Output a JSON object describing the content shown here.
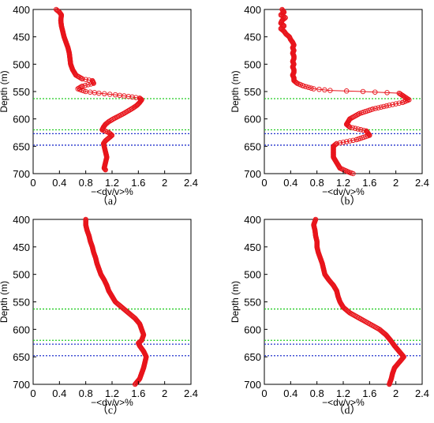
{
  "figure": {
    "panel_labels": [
      "（a）",
      "（b）",
      "（c）",
      "（d）"
    ]
  },
  "style": {
    "marker_color": "#e8141b",
    "green_line_color": "#22cc22",
    "blue_line_color": "#2233cc"
  },
  "chart_data": [
    {
      "type": "scatter",
      "panel": "（a）",
      "xlabel": "−<dv/v>%",
      "ylabel": "Depth (m)",
      "xlim": [
        0,
        2.4
      ],
      "ylim": [
        400,
        700
      ],
      "y_inverted": true,
      "xticks": [
        "0",
        "0.4",
        "0.8",
        "1.2",
        "1.6",
        "2",
        "2.4"
      ],
      "yticks": [
        "400",
        "450",
        "500",
        "550",
        "600",
        "650",
        "700"
      ],
      "hlines": [
        {
          "depth": 563,
          "color": "green"
        },
        {
          "depth": 620,
          "color": "green"
        },
        {
          "depth": 627,
          "color": "blue"
        },
        {
          "depth": 648,
          "color": "blue"
        }
      ],
      "curve": [
        [
          0.35,
          400
        ],
        [
          0.4,
          405
        ],
        [
          0.43,
          410
        ],
        [
          0.42,
          420
        ],
        [
          0.43,
          430
        ],
        [
          0.45,
          440
        ],
        [
          0.47,
          450
        ],
        [
          0.5,
          460
        ],
        [
          0.53,
          470
        ],
        [
          0.55,
          480
        ],
        [
          0.56,
          490
        ],
        [
          0.57,
          500
        ],
        [
          0.6,
          510
        ],
        [
          0.65,
          520
        ],
        [
          0.75,
          527
        ],
        [
          0.9,
          530
        ],
        [
          0.92,
          535
        ],
        [
          0.75,
          540
        ],
        [
          0.68,
          545
        ],
        [
          0.8,
          550
        ],
        [
          1.0,
          553
        ],
        [
          1.25,
          556
        ],
        [
          1.45,
          559
        ],
        [
          1.62,
          562
        ],
        [
          1.65,
          565
        ],
        [
          1.62,
          570
        ],
        [
          1.58,
          575
        ],
        [
          1.52,
          580
        ],
        [
          1.45,
          585
        ],
        [
          1.38,
          590
        ],
        [
          1.3,
          595
        ],
        [
          1.22,
          600
        ],
        [
          1.15,
          605
        ],
        [
          1.1,
          610
        ],
        [
          1.07,
          615
        ],
        [
          1.05,
          620
        ],
        [
          1.15,
          625
        ],
        [
          1.2,
          630
        ],
        [
          1.15,
          635
        ],
        [
          1.1,
          640
        ],
        [
          1.07,
          645
        ],
        [
          1.08,
          650
        ],
        [
          1.1,
          660
        ],
        [
          1.12,
          670
        ],
        [
          1.1,
          680
        ],
        [
          1.08,
          690
        ],
        [
          1.1,
          693
        ]
      ]
    },
    {
      "type": "scatter",
      "panel": "（b）",
      "xlabel": "−<dv/v>%",
      "ylabel": "Depth (m)",
      "xlim": [
        0,
        2.4
      ],
      "ylim": [
        400,
        700
      ],
      "y_inverted": true,
      "xticks": [
        "0",
        "0.4",
        "0.8",
        "1.2",
        "1.6",
        "2",
        "2.4"
      ],
      "yticks": [
        "400",
        "450",
        "500",
        "550",
        "600",
        "650",
        "700"
      ],
      "hlines": [
        {
          "depth": 563,
          "color": "green"
        },
        {
          "depth": 620,
          "color": "green"
        },
        {
          "depth": 627,
          "color": "blue"
        },
        {
          "depth": 648,
          "color": "blue"
        }
      ],
      "curve": [
        [
          0.27,
          400
        ],
        [
          0.3,
          405
        ],
        [
          0.25,
          410
        ],
        [
          0.32,
          415
        ],
        [
          0.27,
          420
        ],
        [
          0.25,
          425
        ],
        [
          0.3,
          430
        ],
        [
          0.25,
          435
        ],
        [
          0.3,
          440
        ],
        [
          0.33,
          445
        ],
        [
          0.38,
          450
        ],
        [
          0.4,
          455
        ],
        [
          0.43,
          460
        ],
        [
          0.45,
          465
        ],
        [
          0.43,
          470
        ],
        [
          0.45,
          475
        ],
        [
          0.43,
          480
        ],
        [
          0.45,
          485
        ],
        [
          0.45,
          490
        ],
        [
          0.43,
          495
        ],
        [
          0.45,
          500
        ],
        [
          0.43,
          505
        ],
        [
          0.45,
          510
        ],
        [
          0.45,
          515
        ],
        [
          0.43,
          520
        ],
        [
          0.45,
          525
        ],
        [
          0.45,
          530
        ],
        [
          0.5,
          535
        ],
        [
          0.6,
          540
        ],
        [
          0.75,
          545
        ],
        [
          1.0,
          548
        ],
        [
          1.5,
          550
        ],
        [
          2.05,
          553
        ],
        [
          2.2,
          565
        ],
        [
          2.1,
          570
        ],
        [
          1.9,
          575
        ],
        [
          1.65,
          582
        ],
        [
          1.45,
          590
        ],
        [
          1.3,
          600
        ],
        [
          1.25,
          610
        ],
        [
          1.3,
          615
        ],
        [
          1.55,
          622
        ],
        [
          1.6,
          630
        ],
        [
          1.4,
          638
        ],
        [
          1.1,
          645
        ],
        [
          1.05,
          650
        ],
        [
          1.05,
          660
        ],
        [
          1.05,
          670
        ],
        [
          1.1,
          680
        ],
        [
          1.15,
          690
        ],
        [
          1.3,
          698
        ],
        [
          1.35,
          700
        ]
      ]
    },
    {
      "type": "scatter",
      "panel": "（c）",
      "xlabel": "−<dv/v>%",
      "ylabel": "Depth (m)",
      "xlim": [
        0,
        2.4
      ],
      "ylim": [
        400,
        700
      ],
      "y_inverted": true,
      "xticks": [
        "0",
        "0.4",
        "0.8",
        "1.2",
        "1.6",
        "2",
        "2.4"
      ],
      "yticks": [
        "400",
        "450",
        "500",
        "550",
        "600",
        "650",
        "700"
      ],
      "hlines": [
        {
          "depth": 563,
          "color": "green"
        },
        {
          "depth": 620,
          "color": "green"
        },
        {
          "depth": 627,
          "color": "blue"
        },
        {
          "depth": 648,
          "color": "blue"
        }
      ],
      "curve": [
        [
          0.8,
          400
        ],
        [
          0.8,
          410
        ],
        [
          0.82,
          420
        ],
        [
          0.85,
          430
        ],
        [
          0.87,
          440
        ],
        [
          0.9,
          450
        ],
        [
          0.92,
          460
        ],
        [
          0.95,
          470
        ],
        [
          0.97,
          480
        ],
        [
          1.0,
          490
        ],
        [
          1.03,
          500
        ],
        [
          1.08,
          510
        ],
        [
          1.12,
          520
        ],
        [
          1.15,
          530
        ],
        [
          1.2,
          540
        ],
        [
          1.25,
          550
        ],
        [
          1.35,
          560
        ],
        [
          1.45,
          570
        ],
        [
          1.55,
          580
        ],
        [
          1.62,
          590
        ],
        [
          1.65,
          600
        ],
        [
          1.68,
          610
        ],
        [
          1.65,
          620
        ],
        [
          1.6,
          625
        ],
        [
          1.62,
          630
        ],
        [
          1.68,
          640
        ],
        [
          1.72,
          650
        ],
        [
          1.7,
          660
        ],
        [
          1.68,
          670
        ],
        [
          1.65,
          680
        ],
        [
          1.62,
          690
        ],
        [
          1.55,
          700
        ]
      ]
    },
    {
      "type": "scatter",
      "panel": "（d）",
      "xlabel": "−<dv/v>%",
      "ylabel": "Depth (m)",
      "xlim": [
        0,
        2.4
      ],
      "ylim": [
        400,
        700
      ],
      "y_inverted": true,
      "xticks": [
        "0",
        "0.4",
        "0.8",
        "1.2",
        "1.6",
        "2",
        "2.4"
      ],
      "yticks": [
        "400",
        "450",
        "500",
        "550",
        "600",
        "650",
        "700"
      ],
      "hlines": [
        {
          "depth": 563,
          "color": "green"
        },
        {
          "depth": 620,
          "color": "green"
        },
        {
          "depth": 627,
          "color": "blue"
        },
        {
          "depth": 648,
          "color": "blue"
        }
      ],
      "curve": [
        [
          0.78,
          400
        ],
        [
          0.75,
          410
        ],
        [
          0.77,
          420
        ],
        [
          0.78,
          430
        ],
        [
          0.8,
          440
        ],
        [
          0.8,
          450
        ],
        [
          0.82,
          460
        ],
        [
          0.85,
          470
        ],
        [
          0.88,
          480
        ],
        [
          0.9,
          490
        ],
        [
          0.92,
          500
        ],
        [
          0.98,
          510
        ],
        [
          1.05,
          520
        ],
        [
          1.1,
          530
        ],
        [
          1.12,
          540
        ],
        [
          1.15,
          550
        ],
        [
          1.2,
          560
        ],
        [
          1.3,
          570
        ],
        [
          1.45,
          580
        ],
        [
          1.6,
          590
        ],
        [
          1.75,
          600
        ],
        [
          1.85,
          610
        ],
        [
          1.92,
          620
        ],
        [
          1.98,
          630
        ],
        [
          2.05,
          640
        ],
        [
          2.12,
          650
        ],
        [
          2.05,
          660
        ],
        [
          1.98,
          670
        ],
        [
          1.95,
          680
        ],
        [
          1.93,
          690
        ],
        [
          1.9,
          700
        ]
      ]
    }
  ]
}
